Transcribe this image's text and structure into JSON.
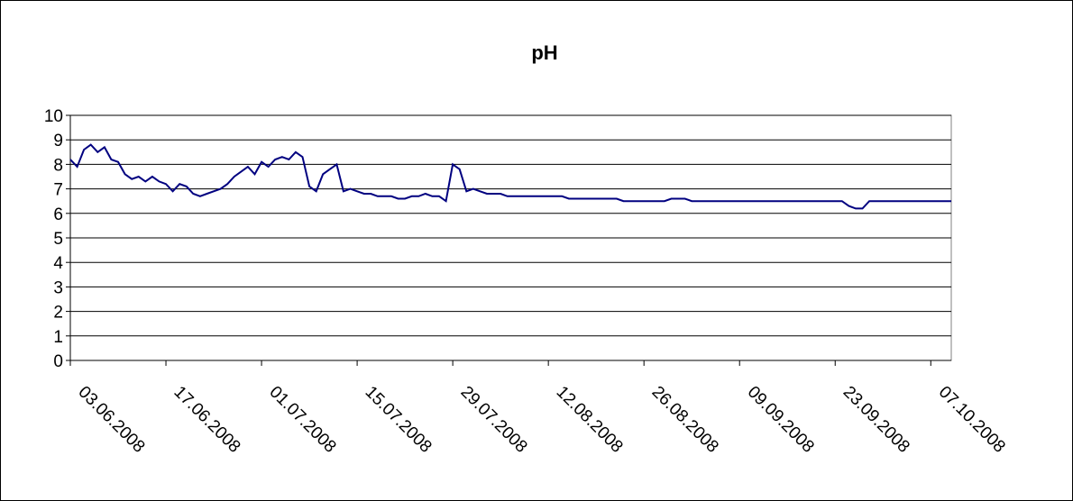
{
  "chart_data": {
    "type": "line",
    "title": "pH",
    "x": [
      "03.06.2008",
      "04.06.2008",
      "05.06.2008",
      "06.06.2008",
      "07.06.2008",
      "08.06.2008",
      "09.06.2008",
      "10.06.2008",
      "11.06.2008",
      "12.06.2008",
      "13.06.2008",
      "14.06.2008",
      "15.06.2008",
      "16.06.2008",
      "17.06.2008",
      "18.06.2008",
      "19.06.2008",
      "20.06.2008",
      "21.06.2008",
      "22.06.2008",
      "23.06.2008",
      "24.06.2008",
      "25.06.2008",
      "26.06.2008",
      "27.06.2008",
      "28.06.2008",
      "29.06.2008",
      "30.06.2008",
      "01.07.2008",
      "02.07.2008",
      "03.07.2008",
      "04.07.2008",
      "05.07.2008",
      "06.07.2008",
      "07.07.2008",
      "08.07.2008",
      "09.07.2008",
      "10.07.2008",
      "11.07.2008",
      "12.07.2008",
      "13.07.2008",
      "14.07.2008",
      "15.07.2008",
      "16.07.2008",
      "17.07.2008",
      "18.07.2008",
      "19.07.2008",
      "20.07.2008",
      "21.07.2008",
      "22.07.2008",
      "23.07.2008",
      "24.07.2008",
      "25.07.2008",
      "26.07.2008",
      "27.07.2008",
      "28.07.2008",
      "29.07.2008",
      "30.07.2008",
      "31.07.2008",
      "01.08.2008",
      "02.08.2008",
      "03.08.2008",
      "04.08.2008",
      "05.08.2008",
      "06.08.2008",
      "07.08.2008",
      "08.08.2008",
      "09.08.2008",
      "10.08.2008",
      "11.08.2008",
      "12.08.2008",
      "13.08.2008",
      "14.08.2008",
      "15.08.2008",
      "16.08.2008",
      "17.08.2008",
      "18.08.2008",
      "19.08.2008",
      "20.08.2008",
      "21.08.2008",
      "22.08.2008",
      "23.08.2008",
      "24.08.2008",
      "25.08.2008",
      "26.08.2008",
      "27.08.2008",
      "28.08.2008",
      "29.08.2008",
      "30.08.2008",
      "31.08.2008",
      "01.09.2008",
      "02.09.2008",
      "03.09.2008",
      "04.09.2008",
      "05.09.2008",
      "06.09.2008",
      "07.09.2008",
      "08.09.2008",
      "09.09.2008",
      "10.09.2008",
      "11.09.2008",
      "12.09.2008",
      "13.09.2008",
      "14.09.2008",
      "15.09.2008",
      "16.09.2008",
      "17.09.2008",
      "18.09.2008",
      "19.09.2008",
      "20.09.2008",
      "21.09.2008",
      "22.09.2008",
      "23.09.2008",
      "24.09.2008",
      "25.09.2008",
      "26.09.2008",
      "27.09.2008",
      "28.09.2008",
      "29.09.2008",
      "30.09.2008",
      "01.10.2008",
      "02.10.2008",
      "03.10.2008",
      "04.10.2008",
      "05.10.2008",
      "06.10.2008",
      "07.10.2008",
      "08.10.2008",
      "09.10.2008",
      "10.10.2008"
    ],
    "series": [
      {
        "color": "#000080",
        "values": [
          8.2,
          7.9,
          8.6,
          8.8,
          8.5,
          8.7,
          8.2,
          8.1,
          7.6,
          7.4,
          7.5,
          7.3,
          7.5,
          7.3,
          7.2,
          6.9,
          7.2,
          7.1,
          6.8,
          6.7,
          6.8,
          6.9,
          7.0,
          7.2,
          7.5,
          7.7,
          7.9,
          7.6,
          8.1,
          7.9,
          8.2,
          8.3,
          8.2,
          8.5,
          8.3,
          7.1,
          6.9,
          7.6,
          7.8,
          8.0,
          6.9,
          7.0,
          6.9,
          6.8,
          6.8,
          6.7,
          6.7,
          6.7,
          6.6,
          6.6,
          6.7,
          6.7,
          6.8,
          6.7,
          6.7,
          6.5,
          8.0,
          7.8,
          6.9,
          7.0,
          6.9,
          6.8,
          6.8,
          6.8,
          6.7,
          6.7,
          6.7,
          6.7,
          6.7,
          6.7,
          6.7,
          6.7,
          6.7,
          6.6,
          6.6,
          6.6,
          6.6,
          6.6,
          6.6,
          6.6,
          6.6,
          6.5,
          6.5,
          6.5,
          6.5,
          6.5,
          6.5,
          6.5,
          6.6,
          6.6,
          6.6,
          6.5,
          6.5,
          6.5,
          6.5,
          6.5,
          6.5,
          6.5,
          6.5,
          6.5,
          6.5,
          6.5,
          6.5,
          6.5,
          6.5,
          6.5,
          6.5,
          6.5,
          6.5,
          6.5,
          6.5,
          6.5,
          6.5,
          6.5,
          6.3,
          6.2,
          6.2,
          6.5,
          6.5,
          6.5,
          6.5,
          6.5,
          6.5,
          6.5,
          6.5,
          6.5,
          6.5,
          6.5,
          6.5,
          6.5
        ]
      }
    ],
    "xlim": [
      "03.06.2008",
      "10.10.2008"
    ],
    "xticks": [
      "03.06.2008",
      "17.06.2008",
      "01.07.2008",
      "15.07.2008",
      "29.07.2008",
      "12.08.2008",
      "26.08.2008",
      "09.09.2008",
      "23.09.2008",
      "07.10.2008"
    ],
    "ylim": [
      0,
      10
    ],
    "yticks": [
      0,
      1,
      2,
      3,
      4,
      5,
      6,
      7,
      8,
      9,
      10
    ],
    "grid": true
  }
}
